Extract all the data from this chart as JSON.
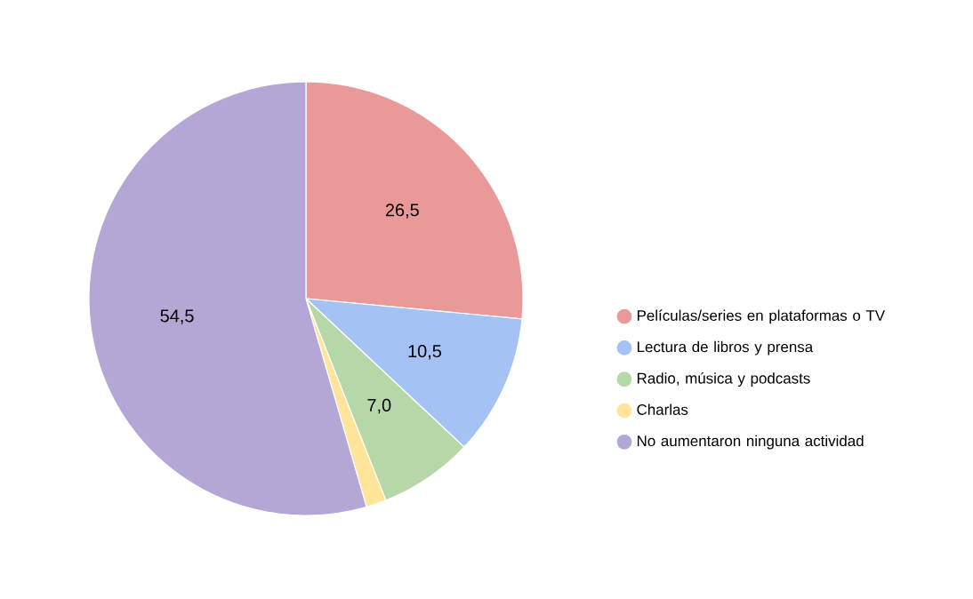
{
  "chart_data": {
    "type": "pie",
    "categories": [
      "Películas/series en plataformas o TV",
      "Lectura de libros y prensa",
      "Radio, música y podcasts",
      "Charlas",
      "No aumentaron ninguna actividad"
    ],
    "values": [
      26.5,
      10.5,
      7.0,
      1.5,
      54.5
    ],
    "value_labels": [
      "26,5",
      "10,5",
      "7,0",
      null,
      "54,5"
    ],
    "colors": [
      "#ea9999",
      "#a4c2f4",
      "#b6d7a8",
      "#ffe599",
      "#b4a7d6"
    ],
    "legend": "right"
  }
}
